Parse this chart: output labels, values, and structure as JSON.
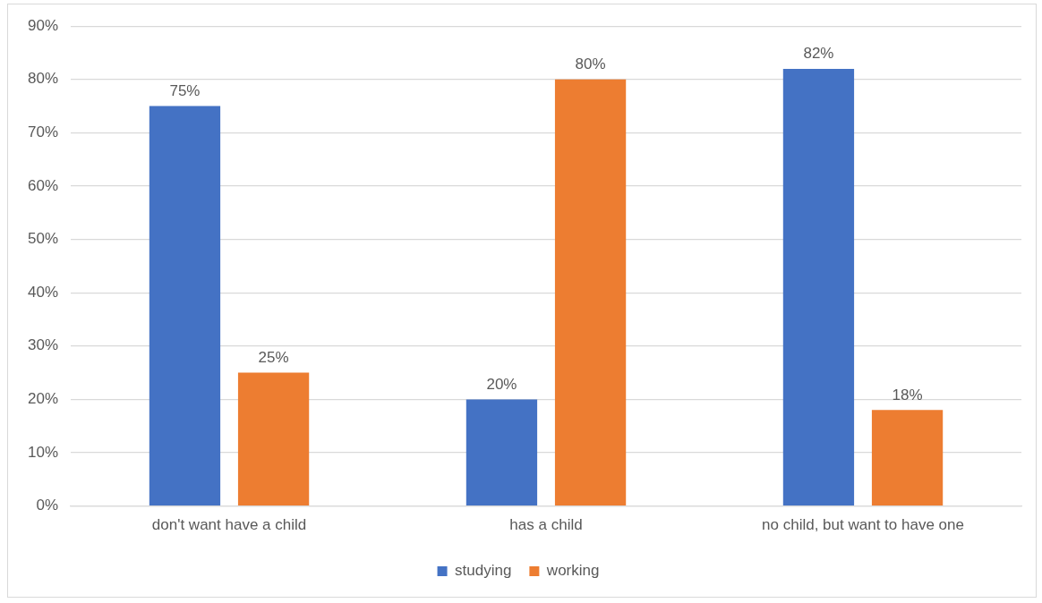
{
  "chart_data": {
    "type": "bar",
    "categories": [
      "don't want have a child",
      "has a child",
      "no child, but want to have one"
    ],
    "series": [
      {
        "name": "studying",
        "color": "#4472c4",
        "values": [
          75,
          20,
          82
        ],
        "value_labels": [
          "75%",
          "20%",
          "82%"
        ]
      },
      {
        "name": "working",
        "color": "#ed7d31",
        "values": [
          25,
          80,
          18
        ],
        "value_labels": [
          "25%",
          "80%",
          "18%"
        ]
      }
    ],
    "ylim": [
      0,
      90
    ],
    "yticks": [
      {
        "value": 0,
        "label": "0%"
      },
      {
        "value": 10,
        "label": "10%"
      },
      {
        "value": 20,
        "label": "20%"
      },
      {
        "value": 30,
        "label": "30%"
      },
      {
        "value": 40,
        "label": "40%"
      },
      {
        "value": 50,
        "label": "50%"
      },
      {
        "value": 60,
        "label": "60%"
      },
      {
        "value": 70,
        "label": "70%"
      },
      {
        "value": 80,
        "label": "80%"
      },
      {
        "value": 90,
        "label": "90%"
      }
    ],
    "grid": "y",
    "legend": "bottom"
  }
}
